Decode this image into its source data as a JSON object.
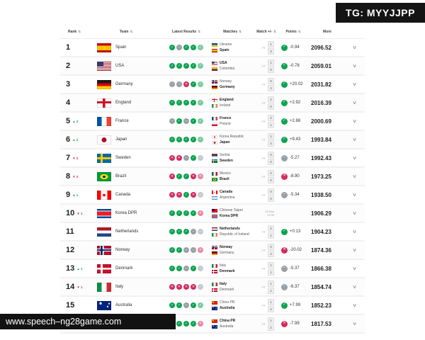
{
  "overlay": {
    "tg_label": "TG: MYYJJPP",
    "footer_url": "www.speech–ng28game.com"
  },
  "icons": {
    "win": "✓",
    "draw": "–",
    "loss": "✕",
    "up": "▲",
    "down": "▼",
    "sort": "⇅",
    "more": "∨"
  },
  "colors": {
    "win_green": "#0ca34f",
    "draw_gray": "#98a0a6",
    "loss_red": "#d42a5b",
    "banner_black": "#141414"
  },
  "table": {
    "columns": [
      {
        "key": "rank",
        "label": "Rank",
        "sortable": true
      },
      {
        "key": "team",
        "label": "Team",
        "sortable": true
      },
      {
        "key": "latest-results",
        "label": "Latest Results",
        "sortable": true
      },
      {
        "key": "matches",
        "label": "Matches",
        "sortable": true
      },
      {
        "key": "match-delta",
        "label": "Match +/-",
        "sortable": true
      },
      {
        "key": "points",
        "label": "Points",
        "sortable": true
      },
      {
        "key": "more",
        "label": "More",
        "sortable": false
      }
    ],
    "rows": [
      {
        "rank": "1",
        "change": null,
        "team": "Spain",
        "flag": "es",
        "results": [
          "w",
          "d",
          "w",
          "w",
          "w"
        ],
        "match": {
          "home": "Ukraine",
          "home_flag": "ua",
          "away": "Spain",
          "away_flag": "es",
          "bold": "away",
          "status": "FT",
          "scores": [
            "1",
            "3"
          ]
        },
        "delta": {
          "kind": "w",
          "value": "-0.94"
        },
        "points": "2096.52"
      },
      {
        "rank": "2",
        "change": null,
        "team": "USA",
        "flag": "us",
        "results": [
          "w",
          "w",
          "w",
          "w",
          "w"
        ],
        "match": {
          "home": "USA",
          "home_flag": "us",
          "away": "Colombia",
          "away_flag": "co",
          "bold": "home",
          "status": "FT",
          "scores": [
            "1",
            "0"
          ]
        },
        "delta": {
          "kind": "w",
          "value": "-0.78"
        },
        "points": "2059.01"
      },
      {
        "rank": "3",
        "change": null,
        "team": "Germany",
        "flag": "de",
        "results": [
          "d",
          "d",
          "l",
          "w",
          "w"
        ],
        "match": {
          "home": "Norway",
          "home_flag": "no",
          "away": "Germany",
          "away_flag": "de",
          "bold": "away",
          "status": "FT",
          "scores": [
            "0",
            "4"
          ]
        },
        "delta": {
          "kind": "w",
          "value": "+20.02"
        },
        "points": "2031.82"
      },
      {
        "rank": "4",
        "change": null,
        "team": "England",
        "flag": "eng",
        "results": [
          "w",
          "w",
          "w",
          "w",
          "w"
        ],
        "match": {
          "home": "England",
          "home_flag": "eng",
          "away": "Ireland",
          "away_flag": "ie",
          "bold": "home",
          "status": "FT",
          "scores": [
            "2",
            "0"
          ]
        },
        "delta": {
          "kind": "w",
          "value": "+2.92"
        },
        "points": "2016.39"
      },
      {
        "rank": "5",
        "change": {
          "dir": "up",
          "value": "2"
        },
        "team": "France",
        "flag": "fr",
        "results": [
          "d",
          "w",
          "d",
          "w",
          "w"
        ],
        "match": {
          "home": "France",
          "home_flag": "fr",
          "away": "Poland",
          "away_flag": "pl",
          "bold": "home",
          "status": "FT",
          "scores": [
            "4",
            "1"
          ]
        },
        "delta": {
          "kind": "w",
          "value": "+2.88"
        },
        "points": "2000.69"
      },
      {
        "rank": "6",
        "change": {
          "dir": "up",
          "value": "2"
        },
        "team": "Japan",
        "flag": "jp",
        "results": [
          "w",
          "w",
          "w",
          "w",
          "w"
        ],
        "match": {
          "home": "Korea Republic",
          "home_flag": "kr",
          "away": "Japan",
          "away_flag": "jp",
          "bold": "away",
          "status": "FT",
          "scores": [
            "1",
            "4"
          ]
        },
        "delta": {
          "kind": "w",
          "value": "+9.43"
        },
        "points": "1993.84"
      },
      {
        "rank": "7",
        "change": {
          "dir": "down",
          "value": "2"
        },
        "team": "Sweden",
        "flag": "se",
        "results": [
          "l",
          "l",
          "d",
          "w",
          "d"
        ],
        "match": {
          "home": "Serbia",
          "home_flag": "rs",
          "away": "Sweden",
          "away_flag": "se",
          "bold": "away",
          "status": "FT",
          "scores": [
            "0",
            "0"
          ]
        },
        "delta": {
          "kind": "d",
          "value": "-5.27"
        },
        "points": "1992.43"
      },
      {
        "rank": "8",
        "change": {
          "dir": "down",
          "value": "2"
        },
        "team": "Brazil",
        "flag": "br",
        "results": [
          "l",
          "w",
          "w",
          "l",
          "l"
        ],
        "match": {
          "home": "Mexico",
          "home_flag": "mx",
          "away": "Brazil",
          "away_flag": "br",
          "bold": "away",
          "status": "FT",
          "scores": [
            "2",
            "0"
          ]
        },
        "delta": {
          "kind": "l",
          "value": "-8.90"
        },
        "points": "1973.25"
      },
      {
        "rank": "9",
        "change": {
          "dir": "up",
          "value": "1"
        },
        "team": "Canada",
        "flag": "ca",
        "results": [
          "l",
          "l",
          "w",
          "l",
          "d"
        ],
        "match": {
          "home": "Canada",
          "home_flag": "ca",
          "away": "Argentina",
          "away_flag": "ar",
          "bold": "home",
          "status": "FT",
          "scores": [
            "0",
            "0"
          ]
        },
        "delta": {
          "kind": "d",
          "value": "-5.34"
        },
        "points": "1938.50"
      },
      {
        "rank": "10",
        "change": {
          "dir": "down",
          "value": "1"
        },
        "team": "Korea DPR",
        "flag": "kp",
        "results": [
          "w",
          "w",
          "w",
          "w",
          "l"
        ],
        "match": {
          "home": "Chinese Taipei",
          "home_flag": "tw",
          "away": "Korea DPR",
          "away_flag": "kp",
          "bold": "away",
          "datetime": [
            "15 Mar",
            "17:00"
          ]
        },
        "delta": null,
        "points": "1906.29"
      },
      {
        "rank": "11",
        "change": null,
        "team": "Netherlands",
        "flag": "nl",
        "results": [
          "w",
          "w",
          "w",
          "d",
          "d"
        ],
        "match": {
          "home": "Netherlands",
          "home_flag": "nl",
          "away": "Republic of Ireland",
          "away_flag": "ie",
          "bold": "home",
          "status": "FT",
          "scores": [
            "2",
            "1"
          ]
        },
        "delta": {
          "kind": "w",
          "value": "+0.13"
        },
        "points": "1904.23"
      },
      {
        "rank": "12",
        "change": null,
        "team": "Norway",
        "flag": "no",
        "results": [
          "w",
          "w",
          "d",
          "d",
          "l"
        ],
        "match": {
          "home": "Norway",
          "home_flag": "no",
          "away": "Germany",
          "away_flag": "de",
          "bold": "home",
          "status": "FT",
          "scores": [
            "0",
            "4"
          ]
        },
        "delta": {
          "kind": "l",
          "value": "-20.02"
        },
        "points": "1874.36"
      },
      {
        "rank": "13",
        "change": {
          "dir": "up",
          "value": "1"
        },
        "team": "Denmark",
        "flag": "dk",
        "results": [
          "w",
          "w",
          "d",
          "w",
          "d"
        ],
        "match": {
          "home": "Italy",
          "home_flag": "it",
          "away": "Denmark",
          "away_flag": "dk",
          "bold": "away",
          "status": "FT",
          "scores": [
            "1",
            "1"
          ]
        },
        "delta": {
          "kind": "d",
          "value": "-5.37"
        },
        "points": "1866.38"
      },
      {
        "rank": "14",
        "change": {
          "dir": "down",
          "value": "1"
        },
        "team": "Italy",
        "flag": "it",
        "results": [
          "l",
          "l",
          "l",
          "l",
          "d"
        ],
        "match": {
          "home": "Italy",
          "home_flag": "it",
          "away": "Denmark",
          "away_flag": "dk",
          "bold": "home",
          "status": "FT",
          "scores": [
            "1",
            "1"
          ]
        },
        "delta": {
          "kind": "d",
          "value": "-6.37"
        },
        "points": "1854.74"
      },
      {
        "rank": "15",
        "change": null,
        "team": "Australia",
        "flag": "au",
        "results": [
          "w",
          "w",
          "d",
          "w",
          "w"
        ],
        "match": {
          "home": "China PR",
          "home_flag": "cn",
          "away": "Australia",
          "away_flag": "au",
          "bold": "away",
          "status": "FT",
          "scores": [
            "1",
            "2"
          ]
        },
        "delta": {
          "kind": "w",
          "value": "+7.99"
        },
        "points": "1852.23"
      },
      {
        "rank": "16",
        "change": {
          "dir": "up",
          "value": "1"
        },
        "team": "China PR",
        "flag": "cn",
        "results": [
          "w",
          "w",
          "w",
          "w",
          "l"
        ],
        "match": {
          "home": "China PR",
          "home_flag": "cn",
          "away": "Australia",
          "away_flag": "au",
          "bold": "home",
          "status": "FT",
          "scores": [
            "1",
            "2"
          ]
        },
        "delta": {
          "kind": "l",
          "value": "-7.99"
        },
        "points": "1817.53"
      }
    ]
  }
}
